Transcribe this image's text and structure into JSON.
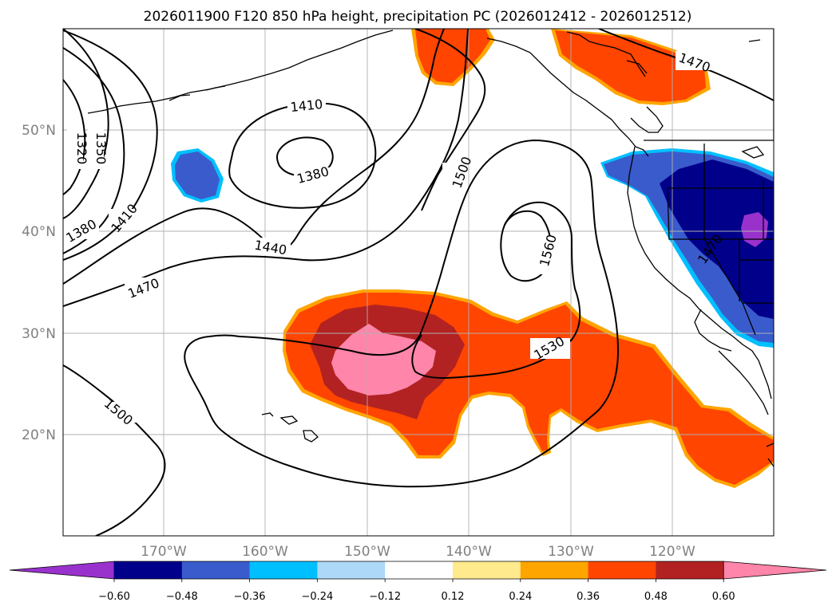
{
  "title": "2026011900 F120 850 hPa height, precipitation PC (2026012412 - 2026012512)",
  "lon_labels": [
    "170°W",
    "160°W",
    "150°W",
    "140°W",
    "130°W",
    "120°W"
  ],
  "lat_labels": [
    "50°N",
    "40°N",
    "30°N",
    "20°N"
  ],
  "height_contour_labels": [
    "1320",
    "1350",
    "1380",
    "1410",
    "1410",
    "1380",
    "1440",
    "1470",
    "1500",
    "1500",
    "1530",
    "1560",
    "1470",
    "1470"
  ],
  "colorbar": {
    "tick_labels": [
      "−0.60",
      "−0.48",
      "−0.36",
      "−0.24",
      "−0.12",
      "0.12",
      "0.24",
      "0.36",
      "0.48",
      "0.60"
    ],
    "colors": [
      "#9932cc",
      "#00008b",
      "#3a5bcc",
      "#00bfff",
      "#add8f7",
      "#ffffff",
      "#ffea8e",
      "#ffa500",
      "#ff4500",
      "#b22222",
      "#ff85aa"
    ]
  },
  "colors": {
    "coast": "#000000",
    "grid": "#b0b0b0",
    "contour": "#000000",
    "precip_low": "#ff4500",
    "precip_mid": "#b22222",
    "precip_high": "#ff85aa",
    "precip_edge": "#ffa500",
    "neg_low": "#3a5bcc",
    "neg_mid": "#00008b",
    "neg_high": "#9932cc",
    "neg_edge": "#00bfff"
  }
}
